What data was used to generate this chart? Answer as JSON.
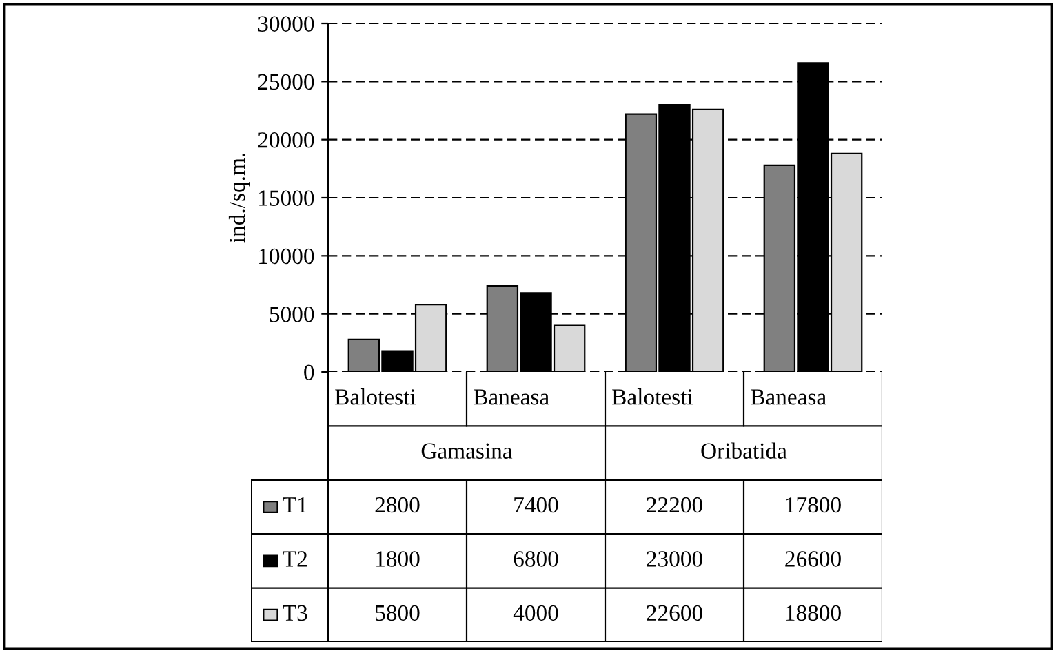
{
  "chart_data": {
    "type": "bar",
    "ylabel": "ind./sq.m.",
    "categories": [
      "Balotesti",
      "Baneasa",
      "Balotesti",
      "Baneasa"
    ],
    "annotations": [
      "Gamasina",
      "Oribatida"
    ],
    "series": [
      {
        "name": "T1",
        "color": "#808080",
        "values": [
          2800,
          7400,
          22200,
          17800
        ]
      },
      {
        "name": "T2",
        "color": "#000000",
        "values": [
          1800,
          6800,
          23000,
          26600
        ]
      },
      {
        "name": "T3",
        "color": "#d9d9d9",
        "values": [
          5800,
          4000,
          22600,
          18800
        ]
      }
    ],
    "ylim": [
      0,
      30000
    ],
    "yticks": [
      0,
      5000,
      10000,
      15000,
      20000,
      25000,
      30000
    ],
    "grid": "y",
    "data_labels": true,
    "legend": "bottom left"
  }
}
